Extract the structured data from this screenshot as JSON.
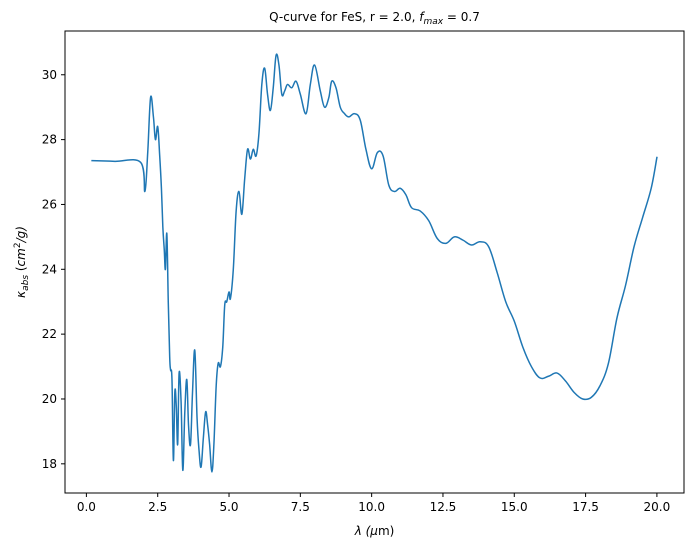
{
  "chart_data": {
    "type": "line",
    "title": "Q-curve for FeS, r = 2.0, ",
    "title_sub": "f",
    "title_sub_index": "max",
    "title_suffix": " = 0.7",
    "xlabel_prefix": "λ (",
    "xlabel_mu": "μ",
    "xlabel_suffix": "m)",
    "ylabel_kappa": "κ",
    "ylabel_sub": "abs",
    "ylabel_unit_open": " (",
    "ylabel_unit": "cm",
    "ylabel_unit_sup": "2",
    "ylabel_unit_rest": "/g)",
    "xlim": [
      -0.75,
      20.95
    ],
    "ylim": [
      17.1,
      31.35
    ],
    "xticks": [
      0.0,
      2.5,
      5.0,
      7.5,
      10.0,
      12.5,
      15.0,
      17.5,
      20.0
    ],
    "xtick_labels": [
      "0.0",
      "2.5",
      "5.0",
      "7.5",
      "10.0",
      "12.5",
      "15.0",
      "17.5",
      "20.0"
    ],
    "yticks": [
      18,
      20,
      22,
      24,
      26,
      28,
      30
    ],
    "ytick_labels": [
      "18",
      "20",
      "22",
      "24",
      "26",
      "28",
      "30"
    ],
    "grid": false,
    "line_color": "#1f77b4",
    "series": [
      {
        "x": [
          0.2,
          1.0,
          1.9,
          2.05,
          2.15,
          2.25,
          2.35,
          2.42,
          2.5,
          2.57,
          2.63,
          2.68,
          2.73,
          2.77,
          2.82,
          2.87,
          2.92,
          2.95,
          3.0,
          3.05,
          3.1,
          3.15,
          3.2,
          3.25,
          3.32,
          3.38,
          3.45,
          3.52,
          3.58,
          3.65,
          3.72,
          3.8,
          3.88,
          3.95,
          4.02,
          4.1,
          4.18,
          4.25,
          4.32,
          4.4,
          4.47,
          4.55,
          4.62,
          4.7,
          4.78,
          4.85,
          4.92,
          5.0,
          5.05,
          5.15,
          5.25,
          5.35,
          5.45,
          5.55,
          5.65,
          5.75,
          5.85,
          5.95,
          6.05,
          6.15,
          6.25,
          6.35,
          6.45,
          6.55,
          6.65,
          6.75,
          6.85,
          6.95,
          7.05,
          7.2,
          7.35,
          7.5,
          7.7,
          7.85,
          8.0,
          8.2,
          8.35,
          8.5,
          8.6,
          8.75,
          8.9,
          9.05,
          9.2,
          9.4,
          9.6,
          9.8,
          10.0,
          10.2,
          10.4,
          10.6,
          10.8,
          11.0,
          11.2,
          11.4,
          11.7,
          12.0,
          12.3,
          12.6,
          12.9,
          13.2,
          13.5,
          13.8,
          14.1,
          14.4,
          14.7,
          15.0,
          15.3,
          15.6,
          15.9,
          16.2,
          16.5,
          16.8,
          17.1,
          17.4,
          17.7,
          18.0,
          18.3,
          18.6,
          18.9,
          19.2,
          19.5,
          19.8,
          20.0
        ],
        "y": [
          27.35,
          27.33,
          27.3,
          26.4,
          27.6,
          29.3,
          28.7,
          28.0,
          28.4,
          27.5,
          26.5,
          25.3,
          24.6,
          24.0,
          25.1,
          23.0,
          21.3,
          20.9,
          20.6,
          18.1,
          20.2,
          19.8,
          18.6,
          20.8,
          19.9,
          17.8,
          19.6,
          20.6,
          19.2,
          18.6,
          20.2,
          21.5,
          19.4,
          18.4,
          17.9,
          18.8,
          19.6,
          19.2,
          18.6,
          17.75,
          18.6,
          20.4,
          21.1,
          21.0,
          21.6,
          22.9,
          23.0,
          23.3,
          23.1,
          24.0,
          25.8,
          26.4,
          25.7,
          26.8,
          27.7,
          27.4,
          27.7,
          27.5,
          28.2,
          29.7,
          30.2,
          29.4,
          28.9,
          29.6,
          30.6,
          30.3,
          29.4,
          29.5,
          29.7,
          29.6,
          29.8,
          29.4,
          28.8,
          29.7,
          30.3,
          29.5,
          29.0,
          29.3,
          29.8,
          29.6,
          29.0,
          28.8,
          28.7,
          28.8,
          28.6,
          27.7,
          27.1,
          27.6,
          27.5,
          26.6,
          26.4,
          26.5,
          26.3,
          25.9,
          25.8,
          25.5,
          24.95,
          24.8,
          25.0,
          24.9,
          24.75,
          24.85,
          24.7,
          23.9,
          23.0,
          22.4,
          21.6,
          21.0,
          20.65,
          20.7,
          20.8,
          20.55,
          20.2,
          20.0,
          20.05,
          20.4,
          21.1,
          22.5,
          23.5,
          24.7,
          25.6,
          26.5,
          27.45
        ]
      }
    ]
  }
}
